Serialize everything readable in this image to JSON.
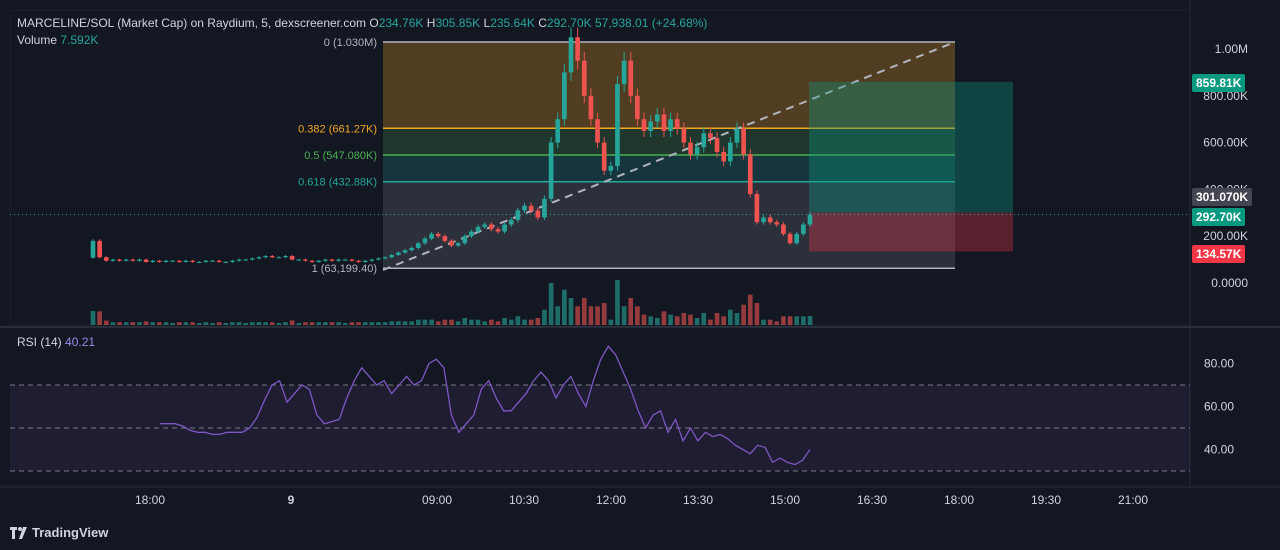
{
  "header": {
    "symbol": "MARCELINE/SOL (Market Cap) on Raydium, 5, dexscreener.com",
    "o_label": "O",
    "o_value": "234.76K",
    "h_label": "H",
    "h_value": "305.85K",
    "l_label": "L",
    "l_value": "235.64K",
    "c_label": "C",
    "c_value": "292.70K",
    "change": "57,938.01 (+24.68%)",
    "volume_label": "Volume",
    "volume_value": "7.592K"
  },
  "rsi": {
    "label": "RSI (14)",
    "value": "40.21"
  },
  "price_boxes": {
    "target": "859.81K",
    "entry_alt": "301.070K",
    "current": "292.70K",
    "stop": "134.57K"
  },
  "fib_labels": {
    "f0": "0 (1.030M)",
    "f382": "0.382 (661.27K)",
    "f5": "0.5 (547.080K)",
    "f618": "0.618 (432.88K)",
    "f1": "1 (63,199.40)"
  },
  "brand": "TradingView",
  "colors": {
    "bg": "#131722",
    "up": "#26a69a",
    "down": "#ef5350",
    "rsi": "#7e57c2",
    "fib382": "#f5a623",
    "fib5": "#4caf50",
    "fib618": "#26a69a"
  },
  "chart_data": [
    {
      "type": "candlestick",
      "title": "MARCELINE/SOL (Market Cap) on Raydium, 5, dexscreener.com",
      "y_axis_ticks": [
        "1.00M",
        "800.00K",
        "600.00K",
        "400.00K",
        "200.00K",
        "0.0000"
      ],
      "y_tick_values": [
        1000000,
        800000,
        600000,
        400000,
        200000,
        0
      ],
      "ylim": [
        -40000,
        1060000
      ],
      "x_axis_ticks": [
        "18:00",
        "9",
        "09:00",
        "10:30",
        "12:00",
        "13:30",
        "15:00",
        "16:30",
        "18:00",
        "19:30",
        "21:00"
      ],
      "fib_levels": [
        {
          "ratio": "0",
          "value": 1030000
        },
        {
          "ratio": "0.382",
          "value": 661270
        },
        {
          "ratio": "0.5",
          "value": 547080
        },
        {
          "ratio": "0.618",
          "value": 432880
        },
        {
          "ratio": "1",
          "value": 63199.4
        }
      ],
      "position": {
        "target": 859810,
        "entry": 301070,
        "current": 292700,
        "stop": 134570
      },
      "close_series": [
        180000,
        110000,
        95000,
        100000,
        95000,
        100000,
        95000,
        100000,
        90000,
        95000,
        90000,
        95000,
        95000,
        90000,
        95000,
        90000,
        90000,
        95000,
        95000,
        90000,
        90000,
        95000,
        100000,
        100000,
        105000,
        110000,
        115000,
        110000,
        110000,
        115000,
        100000,
        100000,
        95000,
        90000,
        95000,
        100000,
        95000,
        100000,
        100000,
        95000,
        90000,
        95000,
        100000,
        105000,
        110000,
        120000,
        130000,
        140000,
        150000,
        170000,
        190000,
        210000,
        200000,
        180000,
        160000,
        170000,
        200000,
        220000,
        240000,
        250000,
        230000,
        220000,
        250000,
        270000,
        310000,
        330000,
        310000,
        280000,
        360000,
        600000,
        700000,
        900000,
        1050000,
        950000,
        800000,
        700000,
        600000,
        480000,
        500000,
        850000,
        950000,
        800000,
        700000,
        650000,
        690000,
        720000,
        650000,
        700000,
        660000,
        600000,
        550000,
        580000,
        640000,
        620000,
        560000,
        520000,
        600000,
        660000,
        550000,
        380000,
        260000,
        280000,
        260000,
        250000,
        210000,
        170000,
        210000,
        250000,
        292700
      ],
      "volume": [
        {
          "label": "Volume",
          "value": "7.592K"
        }
      ]
    },
    {
      "type": "line",
      "title": "RSI (14)",
      "current_value": 40.21,
      "y_axis_ticks": [
        "80.00",
        "60.00",
        "40.00"
      ],
      "ylim": [
        30,
        90
      ],
      "bands": [
        70,
        50,
        30
      ],
      "values": [
        52,
        52,
        52,
        51,
        49,
        48,
        48,
        47,
        47,
        48,
        48,
        48,
        50,
        55,
        63,
        70,
        72,
        62,
        66,
        70,
        68,
        56,
        52,
        53,
        54,
        64,
        72,
        78,
        74,
        70,
        72,
        66,
        70,
        74,
        70,
        72,
        80,
        82,
        78,
        56,
        48,
        52,
        56,
        68,
        72,
        64,
        58,
        58,
        62,
        66,
        72,
        76,
        72,
        64,
        70,
        74,
        66,
        60,
        72,
        82,
        88,
        84,
        76,
        68,
        58,
        50,
        56,
        58,
        48,
        54,
        44,
        50,
        44,
        48,
        46,
        47,
        45,
        42,
        40,
        38,
        42,
        41,
        34,
        36,
        34,
        33,
        35,
        40
      ]
    }
  ]
}
